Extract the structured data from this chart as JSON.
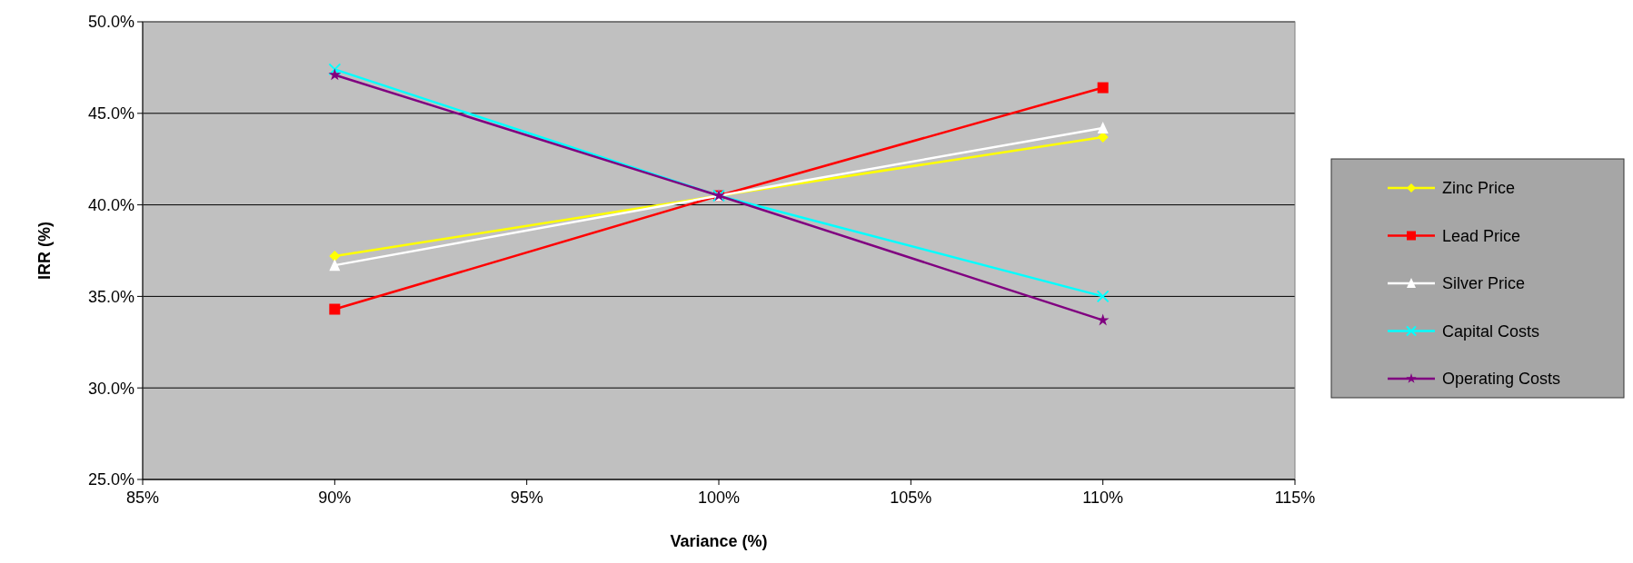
{
  "chart_data": {
    "type": "line",
    "xlabel": "Variance (%)",
    "ylabel": "IRR (%)",
    "x": [
      90,
      100,
      110
    ],
    "xlim": [
      85,
      115
    ],
    "xticks": [
      {
        "value": 85,
        "label": "85%"
      },
      {
        "value": 90,
        "label": "90%"
      },
      {
        "value": 95,
        "label": "95%"
      },
      {
        "value": 100,
        "label": "100%"
      },
      {
        "value": 105,
        "label": "105%"
      },
      {
        "value": 110,
        "label": "110%"
      },
      {
        "value": 115,
        "label": "115%"
      }
    ],
    "ylim": [
      25,
      50
    ],
    "yticks": [
      {
        "value": 25,
        "label": "25.0%"
      },
      {
        "value": 30,
        "label": "30.0%"
      },
      {
        "value": 35,
        "label": "35.0%"
      },
      {
        "value": 40,
        "label": "40.0%"
      },
      {
        "value": 45,
        "label": "45.0%"
      },
      {
        "value": 50,
        "label": "50.0%"
      }
    ],
    "grid": "y",
    "legend": "right",
    "line_style": "solid",
    "series": [
      {
        "name": "Zinc Price",
        "color": "#ffff00",
        "marker": "diamond",
        "values": [
          37.2,
          40.5,
          43.7
        ]
      },
      {
        "name": "Lead Price",
        "color": "#ff0000",
        "marker": "square",
        "values": [
          34.3,
          40.5,
          46.4
        ]
      },
      {
        "name": "Silver Price",
        "color": "#ffffff",
        "marker": "triangle",
        "values": [
          36.7,
          40.5,
          44.2
        ]
      },
      {
        "name": "Capital Costs",
        "color": "#00ffff",
        "marker": "cross",
        "values": [
          47.4,
          40.5,
          35.0
        ]
      },
      {
        "name": "Operating Costs",
        "color": "#800080",
        "marker": "star",
        "values": [
          47.1,
          40.5,
          33.7
        ]
      }
    ]
  }
}
